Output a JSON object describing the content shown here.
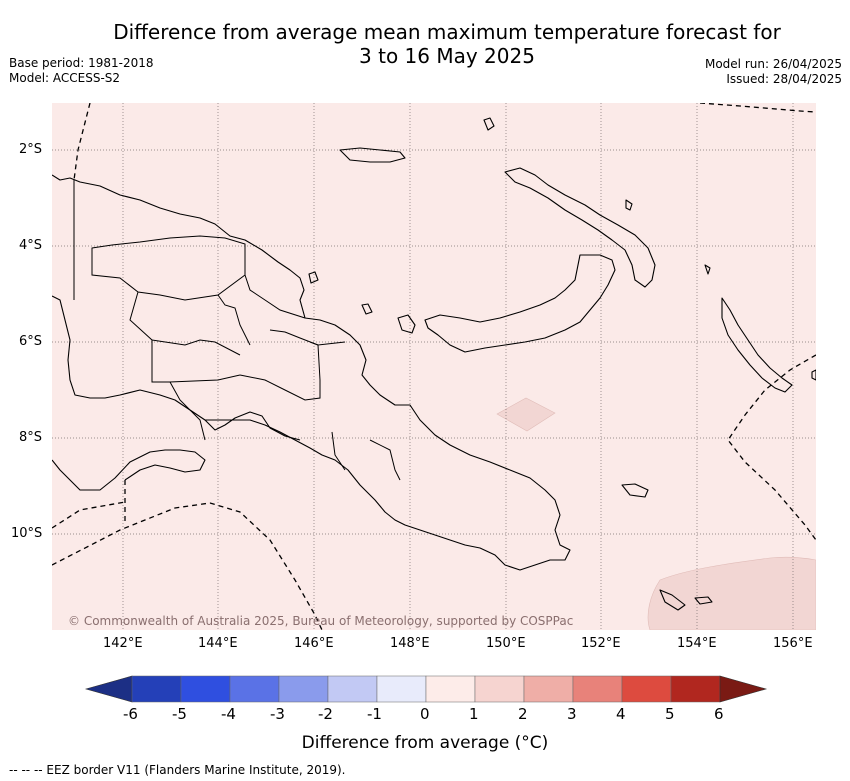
{
  "title": {
    "line1": "Difference from average mean maximum temperature forecast for",
    "line2": "3 to 16 May 2025"
  },
  "meta_left": {
    "base_period": "Base period: 1981-2018",
    "model": "Model: ACCESS-S2"
  },
  "meta_right": {
    "model_run": "Model run: 26/04/2025",
    "issued": "Issued: 28/04/2025"
  },
  "map": {
    "lat_labels": [
      "2°S",
      "4°S",
      "6°S",
      "8°S",
      "10°S"
    ],
    "lon_labels": [
      "142°E",
      "144°E",
      "146°E",
      "148°E",
      "150°E",
      "152°E",
      "154°E",
      "156°E"
    ],
    "background_color": "#fbeae8",
    "anomaly_color": "#f2d6d3",
    "credit": "© Commonwealth of Australia 2025, Bureau of Meteorology, supported by COSPPac"
  },
  "colorbar": {
    "ticks": [
      "-6",
      "-5",
      "-4",
      "-3",
      "-2",
      "-1",
      "0",
      "1",
      "2",
      "3",
      "4",
      "5",
      "6"
    ],
    "colors": [
      "#1c2f85",
      "#2440b8",
      "#2f4fe0",
      "#5a72e6",
      "#8a9bec",
      "#c2c9f4",
      "#e8ebfb",
      "#fdece9",
      "#f6d4d0",
      "#efaea7",
      "#e8827a",
      "#dd4b3f",
      "#b1271f",
      "#7a1a14"
    ],
    "title": "Difference from average (°C)"
  },
  "footer": "--  --  -- EEZ border V11 (Flanders Marine Institute, 2019)."
}
